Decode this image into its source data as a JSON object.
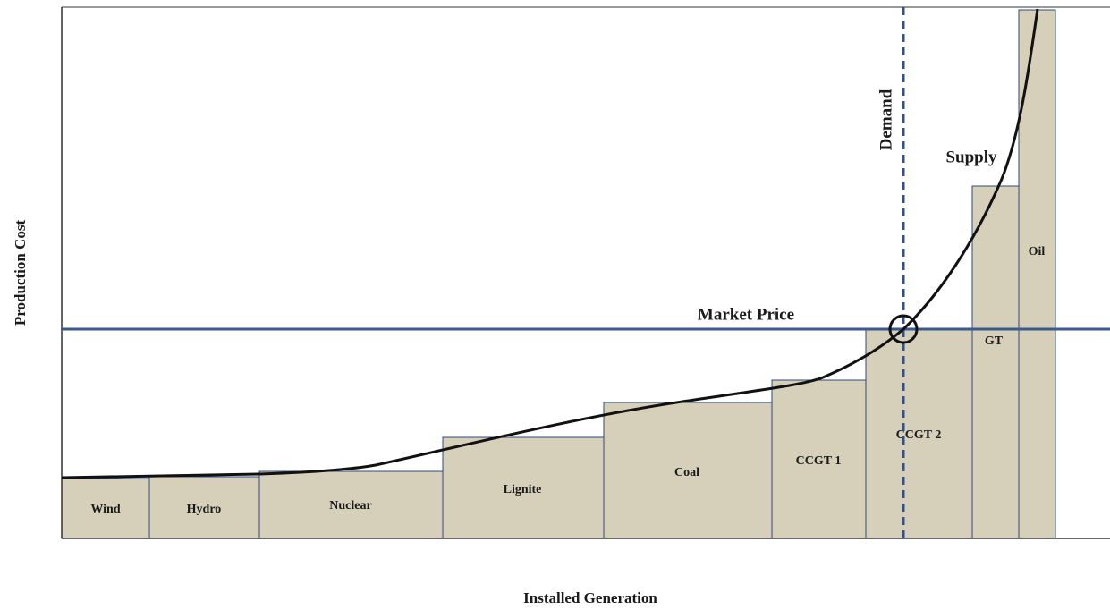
{
  "axes": {
    "x_label": "Installed Generation",
    "y_label": "Production Cost"
  },
  "annotations": {
    "market_price": "Market Price",
    "demand": "Demand",
    "supply": "Supply"
  },
  "blocks": [
    "Wind",
    "Hydro",
    "Nuclear",
    "Lignite",
    "Coal",
    "CCGT 1",
    "CCGT 2",
    "GT",
    "Oil"
  ]
}
